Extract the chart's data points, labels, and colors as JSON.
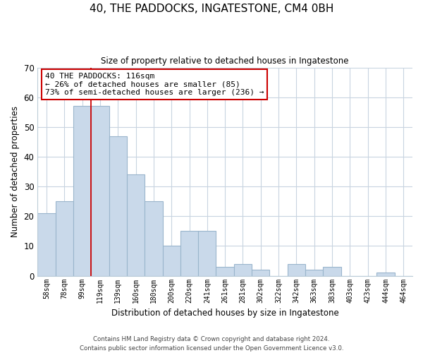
{
  "title": "40, THE PADDOCKS, INGATESTONE, CM4 0BH",
  "subtitle": "Size of property relative to detached houses in Ingatestone",
  "xlabel": "Distribution of detached houses by size in Ingatestone",
  "ylabel": "Number of detached properties",
  "bar_labels": [
    "58sqm",
    "78sqm",
    "99sqm",
    "119sqm",
    "139sqm",
    "160sqm",
    "180sqm",
    "200sqm",
    "220sqm",
    "241sqm",
    "261sqm",
    "281sqm",
    "302sqm",
    "322sqm",
    "342sqm",
    "363sqm",
    "383sqm",
    "403sqm",
    "423sqm",
    "444sqm",
    "464sqm"
  ],
  "bar_values": [
    21,
    25,
    57,
    57,
    47,
    34,
    25,
    10,
    15,
    15,
    3,
    4,
    2,
    0,
    4,
    2,
    3,
    0,
    0,
    1,
    0
  ],
  "bar_color": "#c9d9ea",
  "bar_edge_color": "#9ab5cc",
  "vline_x_idx": 2,
  "vline_color": "#cc0000",
  "ylim": [
    0,
    70
  ],
  "yticks": [
    0,
    10,
    20,
    30,
    40,
    50,
    60,
    70
  ],
  "annotation_line1": "40 THE PADDOCKS: 116sqm",
  "annotation_line2": "← 26% of detached houses are smaller (85)",
  "annotation_line3": "73% of semi-detached houses are larger (236) →",
  "annotation_box_color": "#ffffff",
  "annotation_box_edge": "#cc0000",
  "footer1": "Contains HM Land Registry data © Crown copyright and database right 2024.",
  "footer2": "Contains public sector information licensed under the Open Government Licence v3.0.",
  "background_color": "#ffffff",
  "grid_color": "#c8d4e0"
}
